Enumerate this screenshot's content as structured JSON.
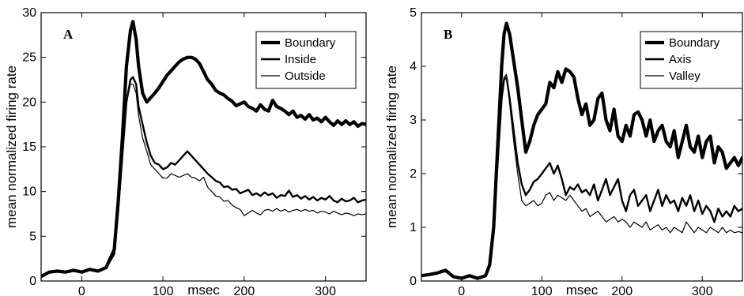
{
  "chart_data": [
    {
      "type": "line",
      "panel_label": "A",
      "xlabel": "msec",
      "ylabel": "mean normalized firing rate",
      "xlim": [
        -50,
        350
      ],
      "ylim": [
        0,
        30
      ],
      "x_ticks": [
        0,
        100,
        200,
        300
      ],
      "y_ticks": [
        0,
        5,
        10,
        15,
        20,
        25,
        30
      ],
      "grid": false,
      "legend_position": "top-right",
      "series": [
        {
          "name": "Boundary",
          "x": [
            -50,
            -40,
            -30,
            -20,
            -10,
            0,
            10,
            20,
            30,
            40,
            45,
            50,
            55,
            60,
            63,
            67,
            70,
            75,
            80,
            85,
            90,
            95,
            100,
            105,
            110,
            115,
            120,
            125,
            130,
            135,
            140,
            145,
            150,
            155,
            160,
            165,
            170,
            175,
            180,
            185,
            190,
            195,
            200,
            205,
            210,
            215,
            220,
            225,
            230,
            235,
            240,
            245,
            250,
            255,
            260,
            265,
            270,
            275,
            280,
            285,
            290,
            295,
            300,
            305,
            310,
            315,
            320,
            325,
            330,
            335,
            340,
            345,
            350
          ],
          "y": [
            0.5,
            1.0,
            1.1,
            1.0,
            1.2,
            1.0,
            1.3,
            1.1,
            1.5,
            3.5,
            9,
            16,
            24,
            28,
            29,
            27,
            24,
            21,
            20,
            20.5,
            21,
            21.6,
            22.3,
            23,
            23.5,
            24,
            24.5,
            24.8,
            25,
            25,
            24.8,
            24.3,
            23.4,
            22.5,
            22,
            21.3,
            21,
            20.8,
            20.4,
            20.1,
            19.6,
            19.8,
            20,
            19.5,
            19.3,
            19,
            19.7,
            19.2,
            19,
            20.2,
            19.5,
            19.3,
            19,
            18.6,
            19,
            18.3,
            18.5,
            18.1,
            18.6,
            18,
            18.2,
            17.8,
            18.3,
            17.8,
            17.4,
            17.9,
            17.5,
            17.9,
            17.5,
            17.8,
            17.3,
            17.6,
            17.5
          ],
          "line_width": "thick"
        },
        {
          "name": "Inside",
          "x": [
            -50,
            -40,
            -30,
            -20,
            -10,
            0,
            10,
            20,
            30,
            40,
            45,
            50,
            55,
            60,
            63,
            67,
            70,
            75,
            80,
            85,
            90,
            95,
            100,
            105,
            110,
            115,
            120,
            125,
            130,
            135,
            140,
            145,
            150,
            155,
            160,
            165,
            170,
            175,
            180,
            185,
            190,
            195,
            200,
            205,
            210,
            215,
            220,
            225,
            230,
            235,
            240,
            245,
            250,
            255,
            260,
            265,
            270,
            275,
            280,
            285,
            290,
            295,
            300,
            305,
            310,
            315,
            320,
            325,
            330,
            335,
            340,
            345,
            350
          ],
          "y": [
            0.5,
            1.0,
            1.1,
            1.0,
            1.2,
            1.0,
            1.3,
            1.1,
            1.5,
            3,
            8,
            14,
            20,
            22.5,
            22.8,
            22,
            19.5,
            17.5,
            15.5,
            14,
            13.2,
            13,
            12.5,
            12.7,
            13.2,
            13,
            13.5,
            14,
            14.5,
            14,
            13.5,
            13,
            12.5,
            12,
            11.6,
            11.2,
            11,
            10.5,
            10.6,
            10.2,
            10.3,
            9.8,
            10,
            10.2,
            9.6,
            9.8,
            9.5,
            9.9,
            9.6,
            9.8,
            9.3,
            9.6,
            9.5,
            10.1,
            9.4,
            9.6,
            9.2,
            9.5,
            9.1,
            9.4,
            9.0,
            9.3,
            9.1,
            9.5,
            9.0,
            8.8,
            9.2,
            8.9,
            9.0,
            9.3,
            8.8,
            9.0,
            9.1
          ],
          "line_width": "medium"
        },
        {
          "name": "Outside",
          "x": [
            -50,
            -40,
            -30,
            -20,
            -10,
            0,
            10,
            20,
            30,
            40,
            45,
            50,
            55,
            60,
            63,
            67,
            70,
            75,
            80,
            85,
            90,
            95,
            100,
            105,
            110,
            115,
            120,
            125,
            130,
            135,
            140,
            145,
            150,
            155,
            160,
            165,
            170,
            175,
            180,
            185,
            190,
            195,
            200,
            205,
            210,
            215,
            220,
            225,
            230,
            235,
            240,
            245,
            250,
            255,
            260,
            265,
            270,
            275,
            280,
            285,
            290,
            295,
            300,
            305,
            310,
            315,
            320,
            325,
            330,
            335,
            340,
            345,
            350
          ],
          "y": [
            0.5,
            1.0,
            1.1,
            1.0,
            1.2,
            1.0,
            1.3,
            1.1,
            1.5,
            3,
            8,
            14,
            20,
            22,
            22,
            21,
            18.5,
            16,
            14.5,
            13,
            12.5,
            12,
            11.5,
            11.5,
            12,
            11.8,
            11.6,
            11.8,
            12,
            11.6,
            11.5,
            11.2,
            11.6,
            10.5,
            10,
            9.5,
            9.4,
            8.9,
            9,
            8.5,
            8.2,
            8.0,
            7.3,
            7.6,
            7.9,
            7.6,
            7.4,
            7.9,
            8.0,
            7.8,
            8.1,
            7.8,
            8.0,
            7.7,
            7.9,
            8.0,
            7.8,
            8.0,
            7.8,
            7.9,
            7.6,
            7.8,
            7.7,
            7.5,
            7.8,
            7.6,
            7.4,
            7.6,
            7.5,
            7.3,
            7.5,
            7.4,
            7.5
          ],
          "line_width": "thin"
        }
      ]
    },
    {
      "type": "line",
      "panel_label": "B",
      "xlabel": "msec",
      "ylabel": "mean normalized firing rate",
      "xlim": [
        -50,
        350
      ],
      "ylim": [
        0,
        5
      ],
      "x_ticks": [
        0,
        100,
        200,
        300
      ],
      "y_ticks": [
        0,
        1,
        2,
        3,
        4,
        5
      ],
      "grid": false,
      "legend_position": "top-right",
      "series": [
        {
          "name": "Boundary",
          "x": [
            -50,
            -40,
            -30,
            -20,
            -10,
            0,
            10,
            20,
            30,
            35,
            40,
            45,
            50,
            53,
            56,
            60,
            65,
            70,
            75,
            80,
            85,
            90,
            95,
            100,
            105,
            110,
            115,
            120,
            125,
            130,
            135,
            140,
            145,
            150,
            155,
            160,
            165,
            170,
            175,
            180,
            185,
            190,
            195,
            200,
            205,
            210,
            215,
            220,
            225,
            230,
            235,
            240,
            245,
            250,
            255,
            260,
            265,
            270,
            275,
            280,
            285,
            290,
            295,
            300,
            305,
            310,
            315,
            320,
            325,
            330,
            335,
            340,
            345,
            350
          ],
          "y": [
            0.1,
            0.12,
            0.15,
            0.2,
            0.08,
            0.05,
            0.1,
            0.05,
            0.1,
            0.3,
            1.0,
            2.5,
            4.0,
            4.6,
            4.8,
            4.6,
            4.1,
            3.6,
            3.0,
            2.4,
            2.6,
            2.9,
            3.1,
            3.2,
            3.3,
            3.7,
            3.6,
            3.9,
            3.7,
            3.95,
            3.9,
            3.8,
            3.4,
            3.1,
            3.3,
            2.9,
            3.0,
            3.4,
            3.5,
            3.0,
            2.8,
            3.2,
            2.7,
            2.6,
            2.9,
            2.7,
            3.1,
            3.15,
            3.0,
            2.7,
            3.0,
            2.6,
            2.8,
            2.9,
            2.6,
            2.5,
            2.8,
            2.3,
            2.6,
            2.9,
            2.5,
            2.4,
            2.7,
            2.3,
            2.6,
            2.7,
            2.2,
            2.5,
            2.4,
            2.1,
            2.2,
            2.3,
            2.15,
            2.3
          ],
          "line_width": "thick"
        },
        {
          "name": "Axis",
          "x": [
            -50,
            -40,
            -30,
            -20,
            -10,
            0,
            10,
            20,
            30,
            35,
            40,
            45,
            50,
            53,
            56,
            60,
            65,
            70,
            75,
            80,
            85,
            90,
            95,
            100,
            105,
            110,
            115,
            120,
            125,
            130,
            135,
            140,
            145,
            150,
            155,
            160,
            165,
            170,
            175,
            180,
            185,
            190,
            195,
            200,
            205,
            210,
            215,
            220,
            225,
            230,
            235,
            240,
            245,
            250,
            255,
            260,
            265,
            270,
            275,
            280,
            285,
            290,
            295,
            300,
            305,
            310,
            315,
            320,
            325,
            330,
            335,
            340,
            345,
            350
          ],
          "y": [
            0.1,
            0.12,
            0.15,
            0.18,
            0.08,
            0.05,
            0.1,
            0.05,
            0.1,
            0.3,
            1.0,
            2.2,
            3.4,
            3.75,
            3.8,
            3.4,
            2.8,
            2.2,
            1.8,
            1.6,
            1.7,
            1.85,
            1.9,
            2.0,
            2.1,
            2.2,
            2.0,
            2.15,
            1.9,
            1.6,
            1.75,
            1.7,
            1.8,
            1.65,
            1.7,
            1.6,
            1.8,
            1.5,
            1.7,
            1.9,
            1.6,
            1.75,
            1.9,
            1.5,
            1.3,
            1.6,
            1.7,
            1.4,
            1.5,
            1.6,
            1.3,
            1.5,
            1.7,
            1.4,
            1.6,
            1.45,
            1.5,
            1.3,
            1.55,
            1.4,
            1.6,
            1.3,
            1.5,
            1.25,
            1.4,
            1.3,
            1.1,
            1.35,
            1.2,
            1.3,
            1.2,
            1.4,
            1.3,
            1.35
          ],
          "line_width": "medium"
        },
        {
          "name": "Valley",
          "x": [
            -50,
            -40,
            -30,
            -20,
            -10,
            0,
            10,
            20,
            30,
            35,
            40,
            45,
            50,
            53,
            56,
            60,
            65,
            70,
            75,
            80,
            85,
            90,
            95,
            100,
            105,
            110,
            115,
            120,
            125,
            130,
            135,
            140,
            145,
            150,
            155,
            160,
            165,
            170,
            175,
            180,
            185,
            190,
            195,
            200,
            205,
            210,
            215,
            220,
            225,
            230,
            235,
            240,
            245,
            250,
            255,
            260,
            265,
            270,
            275,
            280,
            285,
            290,
            295,
            300,
            305,
            310,
            315,
            320,
            325,
            330,
            335,
            340,
            345,
            350
          ],
          "y": [
            0.1,
            0.12,
            0.15,
            0.18,
            0.08,
            0.05,
            0.1,
            0.05,
            0.1,
            0.3,
            1.0,
            2.3,
            3.5,
            3.8,
            3.85,
            3.3,
            2.6,
            2.0,
            1.5,
            1.4,
            1.45,
            1.5,
            1.4,
            1.45,
            1.6,
            1.65,
            1.5,
            1.6,
            1.55,
            1.5,
            1.6,
            1.5,
            1.4,
            1.3,
            1.35,
            1.2,
            1.25,
            1.3,
            1.2,
            1.1,
            1.15,
            1.2,
            1.1,
            1.15,
            1.1,
            1.0,
            1.1,
            1.05,
            1.0,
            1.1,
            0.95,
            1.0,
            1.05,
            0.95,
            1.0,
            0.9,
            1.0,
            0.95,
            0.9,
            1.1,
            1.0,
            0.9,
            1.0,
            0.95,
            0.9,
            1.0,
            0.95,
            0.9,
            1.0,
            0.9,
            0.95,
            0.9,
            0.92,
            0.9
          ],
          "line_width": "thin"
        }
      ]
    }
  ]
}
